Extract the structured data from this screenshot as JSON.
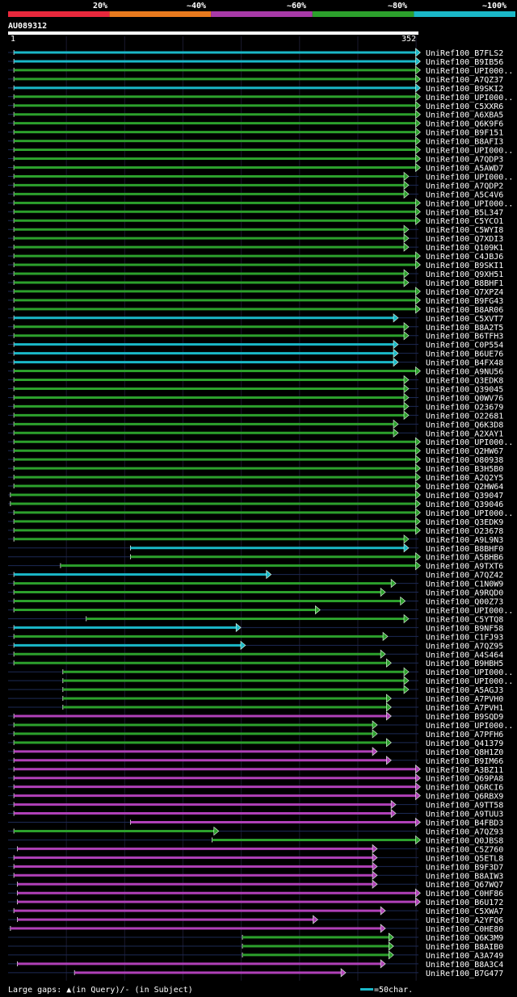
{
  "chart_data": {
    "type": "alignment-overview",
    "query_id": "AU089312",
    "query_start": "1",
    "query_end": "352",
    "query_length": 352,
    "identity_legend": [
      {
        "label": "20%",
        "color": "#e8283c"
      },
      {
        "label": "~40%",
        "color": "#e87a1e"
      },
      {
        "label": "~60%",
        "color": "#a83aa8"
      },
      {
        "label": "~80%",
        "color": "#2ca02c"
      },
      {
        "label": "~100%",
        "color": "#1ab8c8"
      }
    ],
    "colors": {
      "cyan": "#1ab8c8",
      "green": "#2ca02c",
      "magenta": "#b040b8"
    },
    "footer_gaps": "Large gaps: ▲(in Query)/- (in Subject)",
    "footer_scale": "=50char.",
    "hits": [
      {
        "name": "UniRef100_B7FLS2",
        "s": 5,
        "e": 353,
        "c": "cyan"
      },
      {
        "name": "UniRef100_B9IB56",
        "s": 5,
        "e": 353,
        "c": "cyan"
      },
      {
        "name": "UniRef100_UPI000..",
        "s": 5,
        "e": 353,
        "c": "green"
      },
      {
        "name": "UniRef100_A7QZ37",
        "s": 5,
        "e": 353,
        "c": "green"
      },
      {
        "name": "UniRef100_B9SKI2",
        "s": 5,
        "e": 353,
        "c": "cyan"
      },
      {
        "name": "UniRef100_UPI000..",
        "s": 5,
        "e": 353,
        "c": "green"
      },
      {
        "name": "UniRef100_C5XXR6",
        "s": 5,
        "e": 353,
        "c": "green"
      },
      {
        "name": "UniRef100_A6XBA5",
        "s": 5,
        "e": 353,
        "c": "green"
      },
      {
        "name": "UniRef100_Q6K9F6",
        "s": 5,
        "e": 353,
        "c": "green"
      },
      {
        "name": "UniRef100_B9F151",
        "s": 5,
        "e": 353,
        "c": "green"
      },
      {
        "name": "UniRef100_B8AFI3",
        "s": 5,
        "e": 353,
        "c": "green"
      },
      {
        "name": "UniRef100_UPI000..",
        "s": 5,
        "e": 353,
        "c": "green"
      },
      {
        "name": "UniRef100_A7QDP3",
        "s": 5,
        "e": 353,
        "c": "green"
      },
      {
        "name": "UniRef100_A5AWD7",
        "s": 5,
        "e": 353,
        "c": "green"
      },
      {
        "name": "UniRef100_UPI000..",
        "s": 5,
        "e": 343,
        "c": "green"
      },
      {
        "name": "UniRef100_A7QDP2",
        "s": 5,
        "e": 343,
        "c": "green"
      },
      {
        "name": "UniRef100_A5C4V6",
        "s": 5,
        "e": 343,
        "c": "green"
      },
      {
        "name": "UniRef100_UPI000..",
        "s": 5,
        "e": 353,
        "c": "green"
      },
      {
        "name": "UniRef100_B5L347",
        "s": 5,
        "e": 353,
        "c": "green"
      },
      {
        "name": "UniRef100_C5YCO1",
        "s": 5,
        "e": 353,
        "c": "green"
      },
      {
        "name": "UniRef100_C5WYI8",
        "s": 5,
        "e": 343,
        "c": "green"
      },
      {
        "name": "UniRef100_Q7XDI3",
        "s": 5,
        "e": 343,
        "c": "green"
      },
      {
        "name": "UniRef100_Q109K1",
        "s": 5,
        "e": 343,
        "c": "green"
      },
      {
        "name": "UniRef100_C4JBJ6",
        "s": 5,
        "e": 353,
        "c": "green"
      },
      {
        "name": "UniRef100_B9SKI1",
        "s": 5,
        "e": 353,
        "c": "green"
      },
      {
        "name": "UniRef100_Q9XH51",
        "s": 5,
        "e": 343,
        "c": "green"
      },
      {
        "name": "UniRef100_B8BHF1",
        "s": 5,
        "e": 343,
        "c": "green"
      },
      {
        "name": "UniRef100_Q7XPZ4",
        "s": 5,
        "e": 353,
        "c": "green"
      },
      {
        "name": "UniRef100_B9FG43",
        "s": 5,
        "e": 353,
        "c": "green"
      },
      {
        "name": "UniRef100_B8AR06",
        "s": 5,
        "e": 353,
        "c": "green"
      },
      {
        "name": "UniRef100_C5XVT7",
        "s": 5,
        "e": 334,
        "c": "cyan"
      },
      {
        "name": "UniRef100_B8A2T5",
        "s": 5,
        "e": 343,
        "c": "green"
      },
      {
        "name": "UniRef100_B6TFH3",
        "s": 5,
        "e": 343,
        "c": "green"
      },
      {
        "name": "UniRef100_C0P554",
        "s": 5,
        "e": 334,
        "c": "cyan"
      },
      {
        "name": "UniRef100_B6UE76",
        "s": 5,
        "e": 334,
        "c": "cyan"
      },
      {
        "name": "UniRef100_B4FX48",
        "s": 5,
        "e": 334,
        "c": "cyan"
      },
      {
        "name": "UniRef100_A9NU56",
        "s": 5,
        "e": 353,
        "c": "green"
      },
      {
        "name": "UniRef100_Q3EDK8",
        "s": 5,
        "e": 343,
        "c": "green"
      },
      {
        "name": "UniRef100_Q39045",
        "s": 5,
        "e": 343,
        "c": "green"
      },
      {
        "name": "UniRef100_Q0WV76",
        "s": 5,
        "e": 343,
        "c": "green"
      },
      {
        "name": "UniRef100_O23679",
        "s": 5,
        "e": 343,
        "c": "green"
      },
      {
        "name": "UniRef100_O22681",
        "s": 5,
        "e": 343,
        "c": "green"
      },
      {
        "name": "UniRef100_Q6K3D8",
        "s": 5,
        "e": 334,
        "c": "green"
      },
      {
        "name": "UniRef100_A2XAY1",
        "s": 5,
        "e": 334,
        "c": "green"
      },
      {
        "name": "UniRef100_UPI000..",
        "s": 5,
        "e": 353,
        "c": "green"
      },
      {
        "name": "UniRef100_Q2HW67",
        "s": 5,
        "e": 353,
        "c": "green"
      },
      {
        "name": "UniRef100_O80938",
        "s": 5,
        "e": 353,
        "c": "green"
      },
      {
        "name": "UniRef100_B3H5B0",
        "s": 5,
        "e": 353,
        "c": "green"
      },
      {
        "name": "UniRef100_A2Q2Y5",
        "s": 5,
        "e": 353,
        "c": "green"
      },
      {
        "name": "UniRef100_Q2HW64",
        "s": 5,
        "e": 353,
        "c": "green"
      },
      {
        "name": "UniRef100_Q39047",
        "s": 2,
        "e": 353,
        "c": "green"
      },
      {
        "name": "UniRef100_Q39046",
        "s": 2,
        "e": 353,
        "c": "green"
      },
      {
        "name": "UniRef100_UPI000..",
        "s": 5,
        "e": 353,
        "c": "green"
      },
      {
        "name": "UniRef100_Q3EDK9",
        "s": 5,
        "e": 353,
        "c": "green"
      },
      {
        "name": "UniRef100_O23678",
        "s": 5,
        "e": 353,
        "c": "green"
      },
      {
        "name": "UniRef100_A9L9N3",
        "s": 5,
        "e": 343,
        "c": "green"
      },
      {
        "name": "UniRef100_B8BHF0",
        "s": 105,
        "e": 343,
        "c": "cyan"
      },
      {
        "name": "UniRef100_A5BHB6",
        "s": 105,
        "e": 353,
        "c": "green"
      },
      {
        "name": "UniRef100_A9TXT6",
        "s": 45,
        "e": 353,
        "c": "green"
      },
      {
        "name": "UniRef100_A7QZ42",
        "s": 5,
        "e": 225,
        "c": "cyan"
      },
      {
        "name": "UniRef100_C1N0W9",
        "s": 5,
        "e": 332,
        "c": "green"
      },
      {
        "name": "UniRef100_A9RQD0",
        "s": 5,
        "e": 323,
        "c": "green"
      },
      {
        "name": "UniRef100_Q00Z73",
        "s": 5,
        "e": 340,
        "c": "green"
      },
      {
        "name": "UniRef100_UPI000..",
        "s": 5,
        "e": 267,
        "c": "green"
      },
      {
        "name": "UniRef100_C5YTQ8",
        "s": 67,
        "e": 343,
        "c": "green"
      },
      {
        "name": "UniRef100_B9NF58",
        "s": 5,
        "e": 199,
        "c": "cyan"
      },
      {
        "name": "UniRef100_C1FJ93",
        "s": 5,
        "e": 325,
        "c": "green"
      },
      {
        "name": "UniRef100_A7QZ95",
        "s": 5,
        "e": 203,
        "c": "cyan"
      },
      {
        "name": "UniRef100_A4S464",
        "s": 5,
        "e": 323,
        "c": "green"
      },
      {
        "name": "UniRef100_B9HBH5",
        "s": 5,
        "e": 328,
        "c": "green"
      },
      {
        "name": "UniRef100_UPI000..",
        "s": 47,
        "e": 343,
        "c": "green"
      },
      {
        "name": "UniRef100_UPI000..",
        "s": 47,
        "e": 343,
        "c": "green"
      },
      {
        "name": "UniRef100_A5AGJ3",
        "s": 47,
        "e": 343,
        "c": "green"
      },
      {
        "name": "UniRef100_A7PVH0",
        "s": 47,
        "e": 328,
        "c": "green"
      },
      {
        "name": "UniRef100_A7PVH1",
        "s": 47,
        "e": 328,
        "c": "green"
      },
      {
        "name": "UniRef100_B9SQD9",
        "s": 5,
        "e": 328,
        "c": "magenta"
      },
      {
        "name": "UniRef100_UPI000..",
        "s": 5,
        "e": 316,
        "c": "green"
      },
      {
        "name": "UniRef100_A7PFH6",
        "s": 5,
        "e": 316,
        "c": "green"
      },
      {
        "name": "UniRef100_Q41379",
        "s": 5,
        "e": 328,
        "c": "green"
      },
      {
        "name": "UniRef100_Q8H1Z0",
        "s": 5,
        "e": 316,
        "c": "magenta"
      },
      {
        "name": "UniRef100_B9IM66",
        "s": 5,
        "e": 328,
        "c": "magenta"
      },
      {
        "name": "UniRef100_A3BZ11",
        "s": 5,
        "e": 353,
        "c": "magenta"
      },
      {
        "name": "UniRef100_Q69PA8",
        "s": 5,
        "e": 353,
        "c": "magenta"
      },
      {
        "name": "UniRef100_Q6RCI6",
        "s": 5,
        "e": 353,
        "c": "magenta"
      },
      {
        "name": "UniRef100_Q6RBX9",
        "s": 5,
        "e": 353,
        "c": "magenta"
      },
      {
        "name": "UniRef100_A9TT58",
        "s": 5,
        "e": 332,
        "c": "magenta"
      },
      {
        "name": "UniRef100_A9TUU3",
        "s": 5,
        "e": 332,
        "c": "magenta"
      },
      {
        "name": "UniRef100_B4FBD3",
        "s": 105,
        "e": 353,
        "c": "magenta"
      },
      {
        "name": "UniRef100_A7QZ93",
        "s": 5,
        "e": 180,
        "c": "green"
      },
      {
        "name": "UniRef100_Q0JBS8",
        "s": 175,
        "e": 353,
        "c": "green"
      },
      {
        "name": "UniRef100_C5Z760",
        "s": 8,
        "e": 316,
        "c": "magenta"
      },
      {
        "name": "UniRef100_Q5ETL8",
        "s": 5,
        "e": 316,
        "c": "magenta"
      },
      {
        "name": "UniRef100_B9F3D7",
        "s": 5,
        "e": 316,
        "c": "magenta"
      },
      {
        "name": "UniRef100_B8AIW3",
        "s": 5,
        "e": 316,
        "c": "magenta"
      },
      {
        "name": "UniRef100_Q67WQ7",
        "s": 8,
        "e": 316,
        "c": "magenta"
      },
      {
        "name": "UniRef100_C0HF86",
        "s": 8,
        "e": 353,
        "c": "magenta"
      },
      {
        "name": "UniRef100_B6U172",
        "s": 8,
        "e": 353,
        "c": "magenta"
      },
      {
        "name": "UniRef100_C5XWA7",
        "s": 5,
        "e": 323,
        "c": "magenta"
      },
      {
        "name": "UniRef100_A2YFQ6",
        "s": 8,
        "e": 265,
        "c": "magenta"
      },
      {
        "name": "UniRef100_C0HE80",
        "s": 2,
        "e": 323,
        "c": "magenta"
      },
      {
        "name": "UniRef100_Q6K3M9",
        "s": 201,
        "e": 330,
        "c": "green"
      },
      {
        "name": "UniRef100_B8AIB0",
        "s": 201,
        "e": 330,
        "c": "green"
      },
      {
        "name": "UniRef100_A3A749",
        "s": 201,
        "e": 330,
        "c": "green"
      },
      {
        "name": "UniRef100_B8A3C4",
        "s": 8,
        "e": 323,
        "c": "magenta"
      },
      {
        "name": "UniRef100_B7G477",
        "s": 57,
        "e": 289,
        "c": "magenta"
      }
    ]
  }
}
